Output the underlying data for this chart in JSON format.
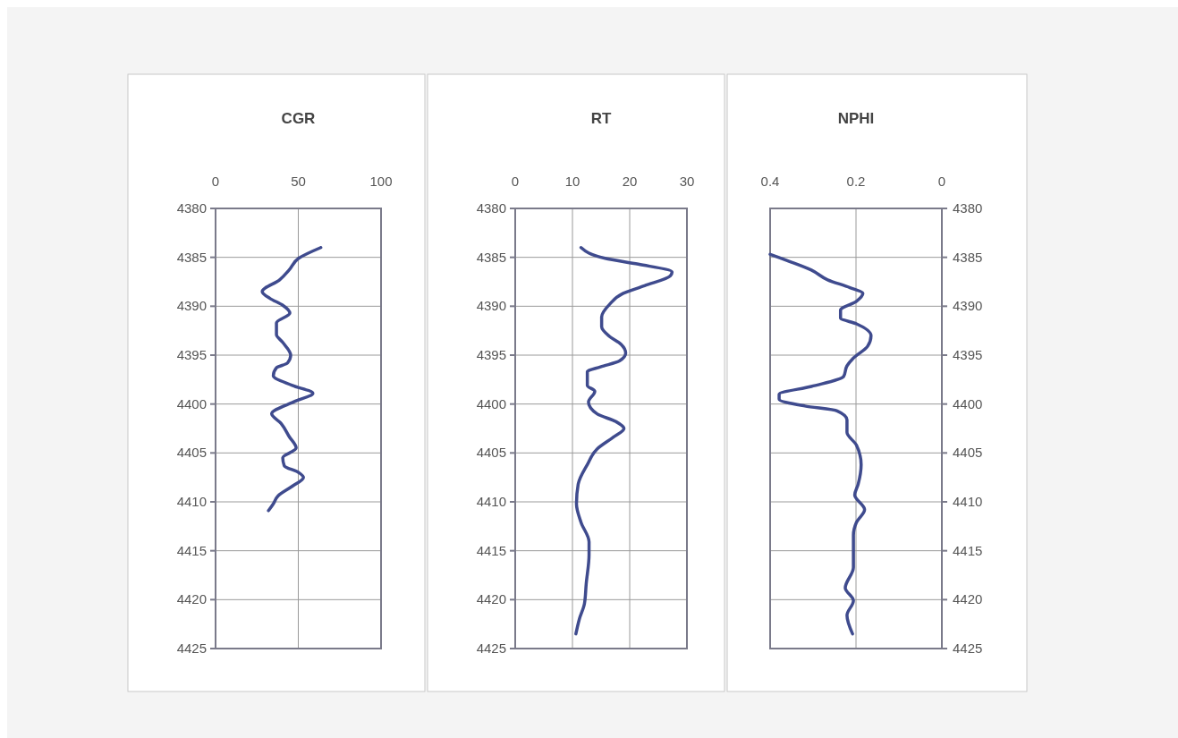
{
  "chart_data": [
    {
      "type": "line",
      "title": "CGR",
      "xlim": [
        0,
        100
      ],
      "xticks": [
        0,
        50,
        100
      ],
      "ylim": [
        4425,
        4380
      ],
      "yticks": [
        4380,
        4385,
        4390,
        4395,
        4400,
        4405,
        4410,
        4415,
        4420,
        4425
      ],
      "grid": true,
      "series": [
        {
          "color": "#3f4b8e",
          "x": [
            63.6,
            50.2,
            44.4,
            38.7,
            28.2,
            32.9,
            40.6,
            44.9,
            36.8,
            36.8,
            40.6,
            45.4,
            43.5,
            36.8,
            34.9,
            46.4,
            58.8,
            48.3,
            33.9,
            39.7,
            44.4,
            48.7,
            40.6,
            41.5,
            50.2,
            53.1,
            46.4,
            37.7,
            34.9,
            32.0
          ],
          "values": [
            4384.0,
            4385.1,
            4386.3,
            4387.3,
            4388.5,
            4389.2,
            4389.9,
            4390.7,
            4391.7,
            4392.9,
            4393.7,
            4395.0,
            4395.8,
            4396.3,
            4397.1,
            4398.1,
            4398.9,
            4399.7,
            4401.0,
            4402.0,
            4403.3,
            4404.5,
            4405.5,
            4406.3,
            4407.0,
            4407.5,
            4408.4,
            4409.4,
            4410.2,
            4410.9
          ]
        }
      ]
    },
    {
      "type": "line",
      "title": "RT",
      "xlim": [
        0,
        30
      ],
      "xticks": [
        0,
        10,
        20,
        30
      ],
      "ylim": [
        4425,
        4380
      ],
      "yticks": [
        4380,
        4385,
        4390,
        4395,
        4400,
        4405,
        4410,
        4415,
        4420,
        4425
      ],
      "grid": true,
      "series": [
        {
          "color": "#3f4b8e",
          "x": [
            11.5,
            15.7,
            21.5,
            27.4,
            27.1,
            22.6,
            18.8,
            16.5,
            15.1,
            15.1,
            16.5,
            18.5,
            19.3,
            18.2,
            14.9,
            12.6,
            12.6,
            13.9,
            12.8,
            14.3,
            17.6,
            19.0,
            17.1,
            14.3,
            12.6,
            11.0,
            10.7,
            11.5,
            12.9,
            12.9,
            12.4,
            12.1,
            11.2,
            10.6
          ],
          "values": [
            4384.0,
            4385.1,
            4385.7,
            4386.5,
            4386.9,
            4387.9,
            4388.7,
            4389.8,
            4391.1,
            4392.1,
            4393.1,
            4393.9,
            4394.8,
            4395.6,
            4396.2,
            4396.7,
            4398.1,
            4398.7,
            4399.8,
            4401.0,
            4401.8,
            4402.5,
            4403.4,
            4404.6,
            4406.2,
            4408.2,
            4410.2,
            4412.1,
            4414.1,
            4415.4,
            4418.4,
            4420.4,
            4422.0,
            4423.5
          ]
        }
      ]
    },
    {
      "type": "line",
      "title": "NPHI",
      "xlim": [
        0.4,
        0
      ],
      "xticks": [
        0.4,
        0.2,
        0
      ],
      "y2lim": [
        4425,
        4380
      ],
      "y2ticks": [
        4380,
        4385,
        4390,
        4395,
        4400,
        4405,
        4410,
        4415,
        4420,
        4425
      ],
      "grid": true,
      "series": [
        {
          "color": "#3f4b8e",
          "axis": "y2",
          "x": [
            0.4,
            0.356,
            0.304,
            0.266,
            0.214,
            0.184,
            0.199,
            0.236,
            0.236,
            0.199,
            0.165,
            0.173,
            0.206,
            0.221,
            0.229,
            0.304,
            0.379,
            0.379,
            0.319,
            0.244,
            0.221,
            0.221,
            0.199,
            0.188,
            0.195,
            0.203,
            0.18,
            0.199,
            0.206,
            0.206,
            0.225,
            0.206,
            0.221,
            0.208
          ],
          "values": [
            4384.7,
            4385.4,
            4386.3,
            4387.3,
            4388.1,
            4388.7,
            4389.5,
            4390.4,
            4391.2,
            4391.8,
            4393.0,
            4394.1,
            4395.3,
            4396.1,
            4397.2,
            4398.2,
            4399.0,
            4399.5,
            4400.2,
            4400.7,
            4401.6,
            4402.9,
            4404.2,
            4406.2,
            4408.2,
            4409.3,
            4410.8,
            4412.1,
            4413.4,
            4416.7,
            4418.8,
            4420.1,
            4421.6,
            4423.5
          ]
        }
      ]
    }
  ]
}
